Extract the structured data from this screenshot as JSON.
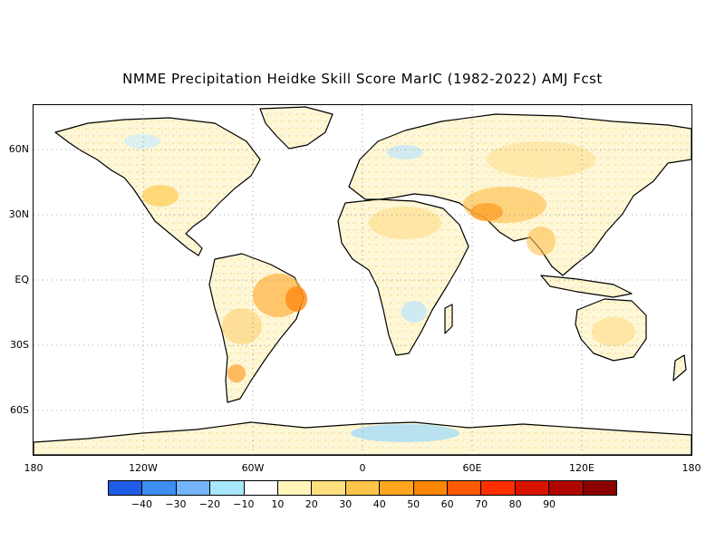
{
  "title": "NMME Precipitation Heidke Skill Score MarIC (1982-2022) AMJ Fcst",
  "map": {
    "lat_labels": [
      "60N",
      "30N",
      "EQ",
      "30S",
      "60S"
    ],
    "lon_labels": [
      "180",
      "120W",
      "60W",
      "0",
      "60E",
      "120E",
      "180"
    ]
  },
  "colorbar": {
    "colors": [
      "#1f5ce6",
      "#3c8ef0",
      "#74b4fa",
      "#a8e6fb",
      "#ffffff",
      "#fff5bb",
      "#ffe07e",
      "#ffc44a",
      "#ffa51e",
      "#ff8600",
      "#ff5a00",
      "#ff2f00",
      "#d81400",
      "#b10600",
      "#8c0000"
    ],
    "labels": [
      "-40",
      "-30",
      "-20",
      "-10",
      "10",
      "20",
      "30",
      "40",
      "50",
      "60",
      "70",
      "80",
      "90"
    ]
  }
}
